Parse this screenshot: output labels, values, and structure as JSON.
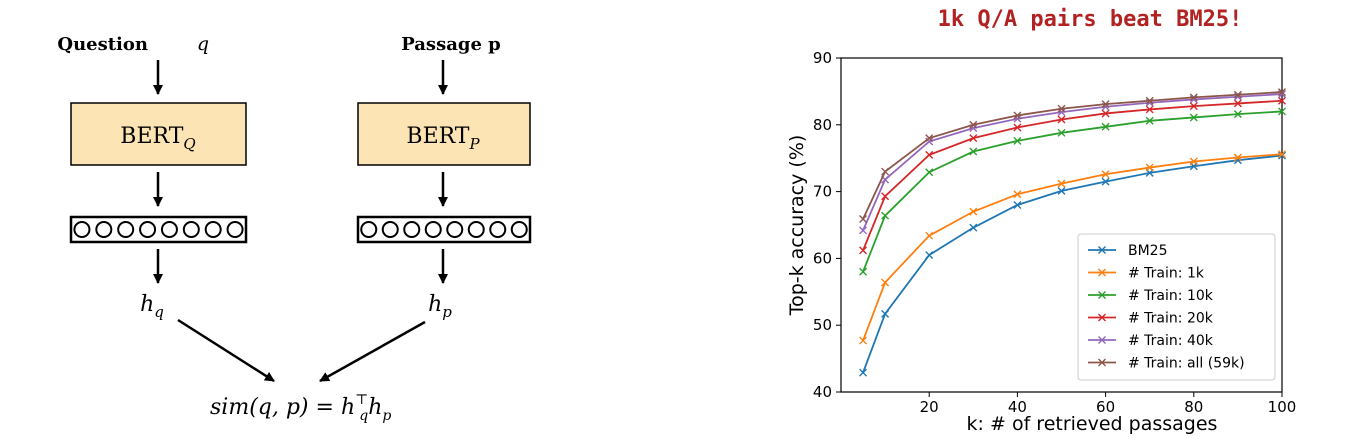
{
  "diagram": {
    "question_label": "Question",
    "question_var": "q",
    "passage_label": "Passage p",
    "bert_q_base": "BERT",
    "bert_q_sub": "Q",
    "bert_p_base": "BERT",
    "bert_p_sub": "P",
    "hq_base": "h",
    "hq_sub": "q",
    "hp_base": "h",
    "hp_sub": "p",
    "sim_lhs": "sim(q, p) = ",
    "sim_h1": "h",
    "sim_h1_sup": "⊤",
    "sim_h1_sub": "q",
    "sim_h2": "h",
    "sim_h2_sub": "p",
    "circles": 8,
    "box_fill": "#fce4b4",
    "box_stroke": "#000000"
  },
  "chart_data": {
    "type": "line",
    "title": "1k Q/A pairs beat BM25!",
    "title_color": "#b22222",
    "xlabel": "k: # of retrieved passages",
    "ylabel": "Top-k accuracy (%)",
    "xlim": [
      0,
      100
    ],
    "ylim": [
      40,
      90
    ],
    "xticks": [
      20,
      40,
      60,
      80,
      100
    ],
    "yticks": [
      40,
      50,
      60,
      70,
      80,
      90
    ],
    "x": [
      5,
      10,
      20,
      30,
      40,
      50,
      60,
      70,
      80,
      90,
      100
    ],
    "legend_position": "lower-right",
    "series": [
      {
        "name": "BM25",
        "color": "#1f77b4",
        "values": [
          42.9,
          51.7,
          60.5,
          64.6,
          68.0,
          70.1,
          71.5,
          72.8,
          73.8,
          74.7,
          75.4
        ]
      },
      {
        "name": "# Train: 1k",
        "color": "#ff7f0e",
        "values": [
          47.7,
          56.4,
          63.4,
          67.0,
          69.6,
          71.2,
          72.6,
          73.6,
          74.5,
          75.1,
          75.6
        ]
      },
      {
        "name": "# Train: 10k",
        "color": "#2ca02c",
        "values": [
          58.0,
          66.4,
          72.9,
          76.0,
          77.6,
          78.8,
          79.7,
          80.6,
          81.1,
          81.6,
          82.0
        ]
      },
      {
        "name": "# Train: 20k",
        "color": "#d62728",
        "values": [
          61.2,
          69.3,
          75.5,
          78.0,
          79.6,
          80.8,
          81.7,
          82.3,
          82.8,
          83.2,
          83.6
        ]
      },
      {
        "name": "# Train: 40k",
        "color": "#9467bd",
        "values": [
          64.2,
          71.8,
          77.5,
          79.5,
          80.9,
          81.9,
          82.7,
          83.3,
          83.8,
          84.2,
          84.6
        ]
      },
      {
        "name": "# Train: all (59k)",
        "color": "#8c564b",
        "values": [
          65.9,
          73.0,
          78.0,
          80.0,
          81.4,
          82.4,
          83.1,
          83.6,
          84.1,
          84.5,
          84.9
        ]
      }
    ]
  }
}
